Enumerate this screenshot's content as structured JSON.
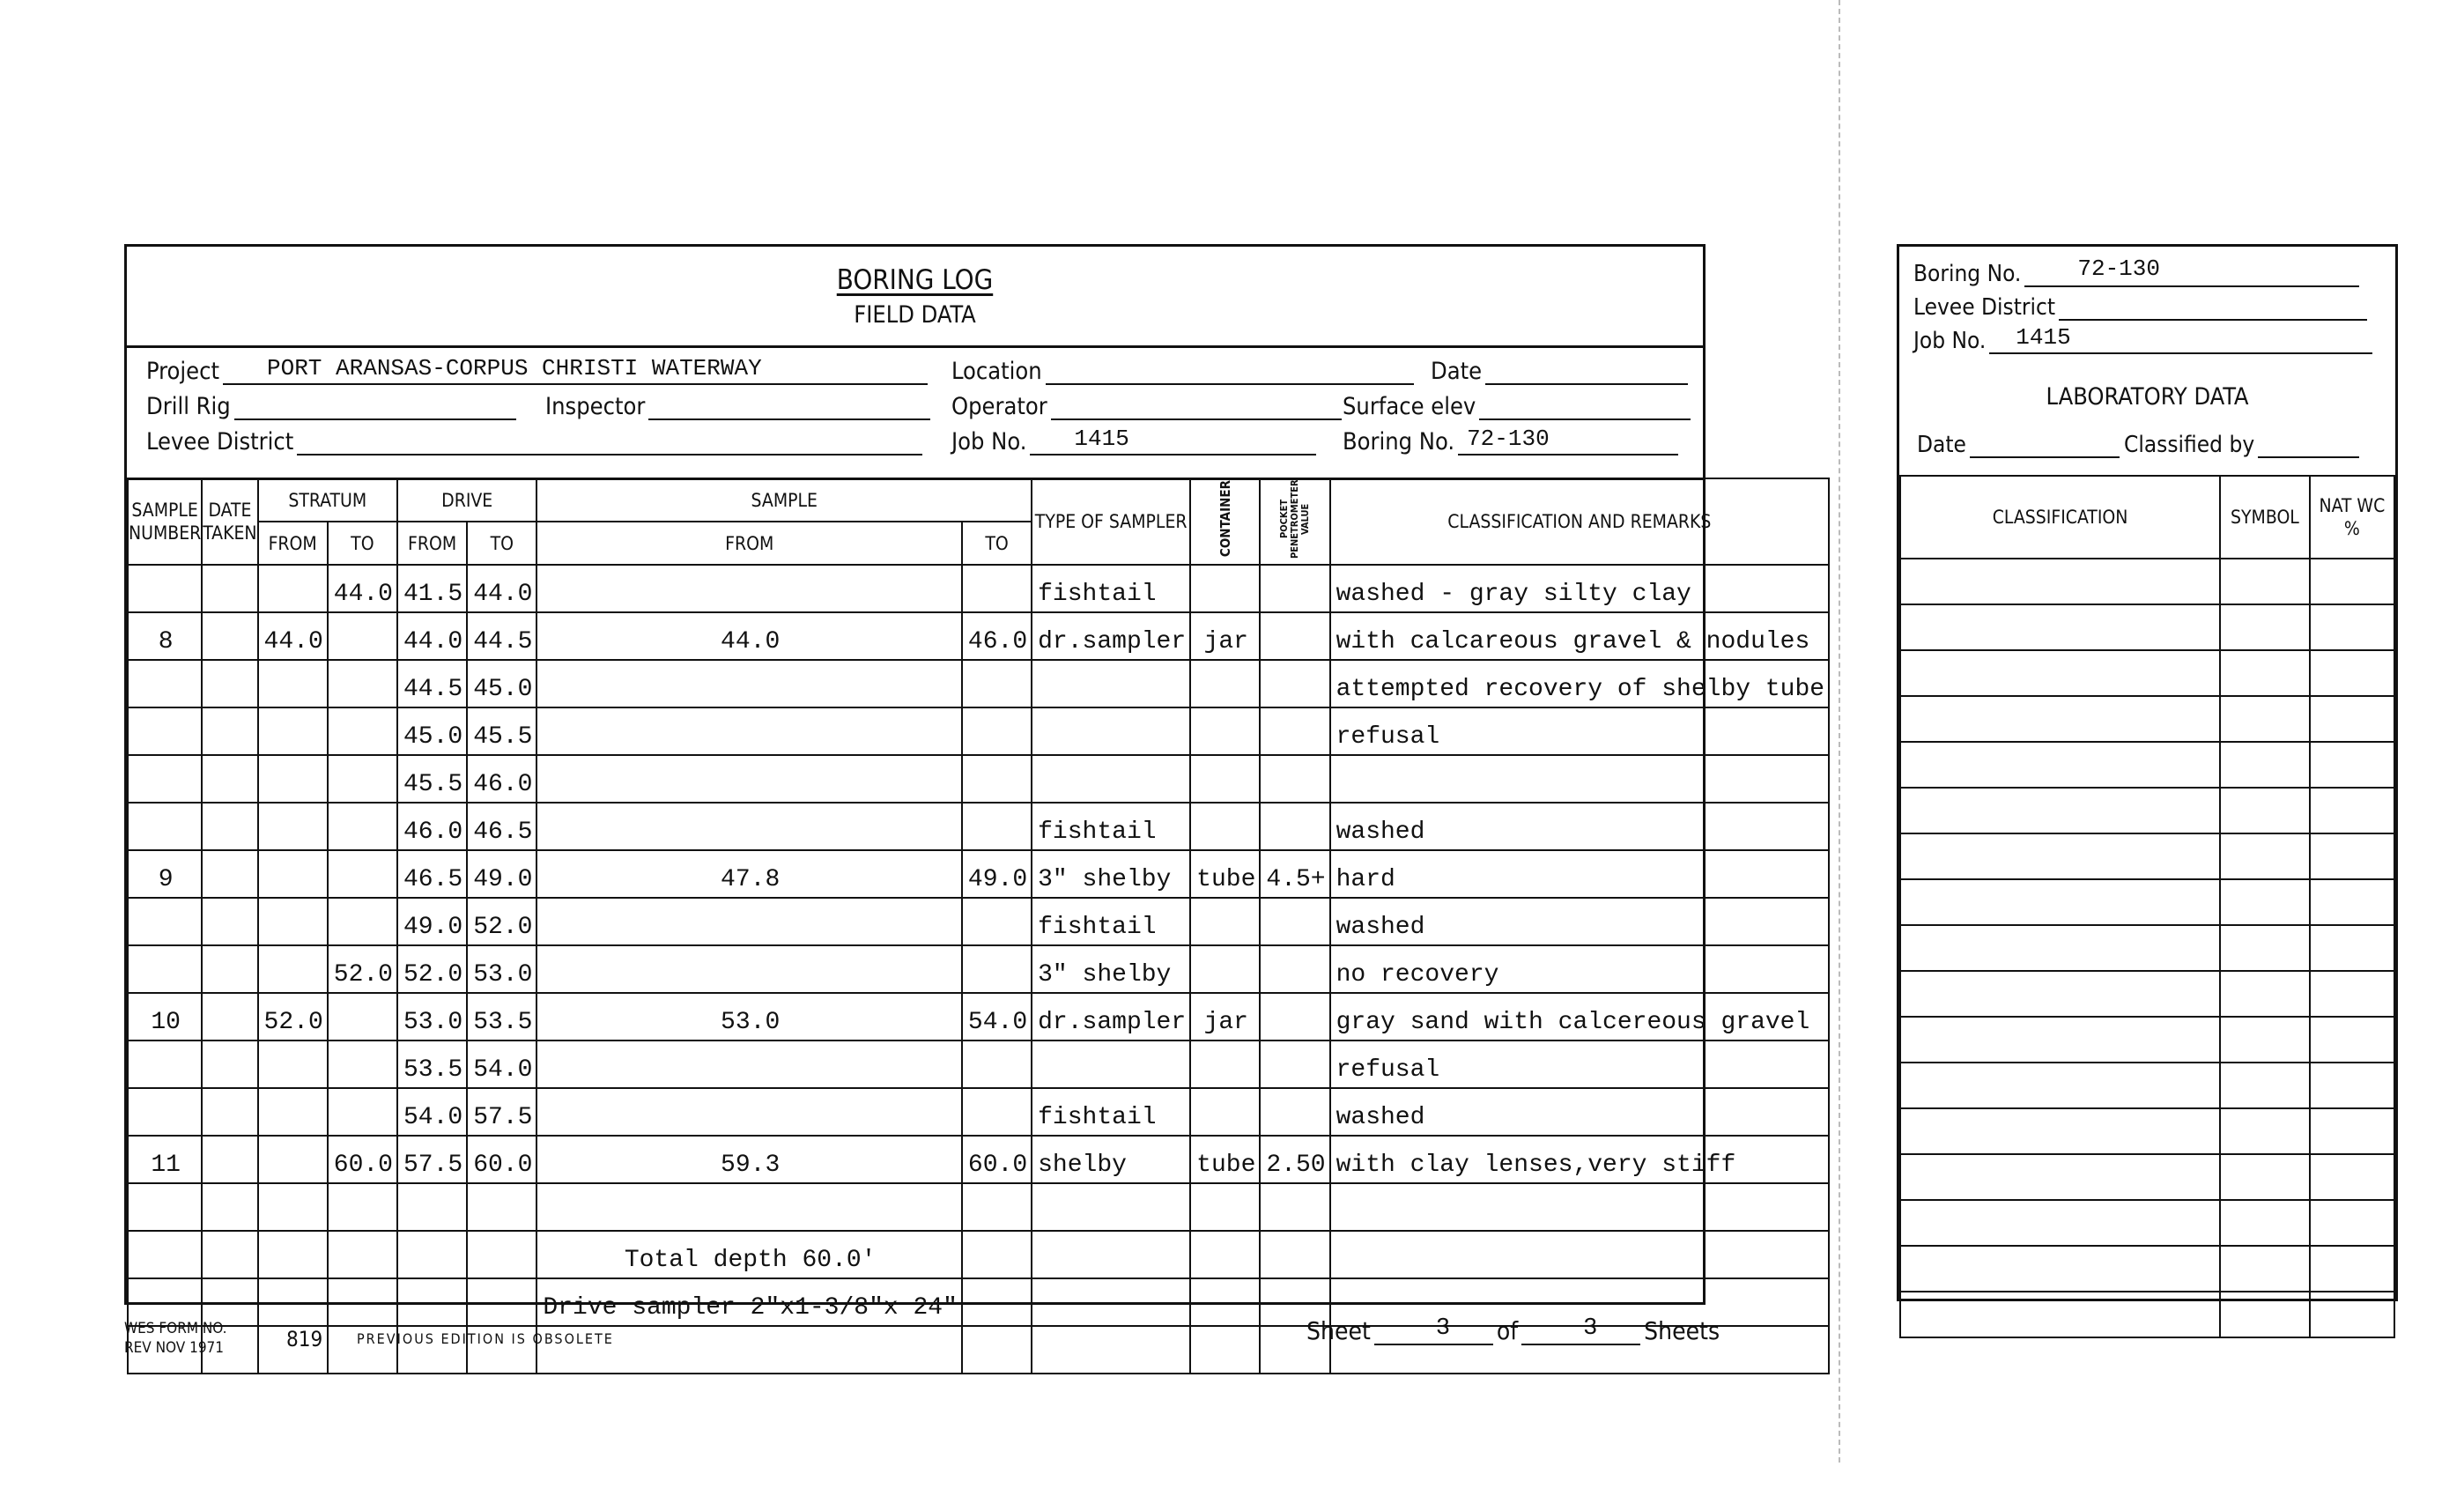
{
  "header": {
    "title": "BORING LOG",
    "subtitle": "FIELD DATA"
  },
  "fields": {
    "project_label": "Project",
    "project_value": "PORT ARANSAS-CORPUS CHRISTI WATERWAY",
    "location_label": "Location",
    "date_label": "Date",
    "drill_rig_label": "Drill Rig",
    "inspector_label": "Inspector",
    "operator_label": "Operator",
    "surface_elev_label": "Surface elev",
    "levee_district_label": "Levee District",
    "job_no_label": "Job No.",
    "job_no_value": "1415",
    "boring_no_label": "Boring No.",
    "boring_no_value": "72-130"
  },
  "table": {
    "headers": {
      "sample_number": "SAMPLE NUMBER",
      "date_taken": "DATE TAKEN",
      "stratum": "STRATUM",
      "drive": "DRIVE",
      "sample": "SAMPLE",
      "from": "FROM",
      "to": "TO",
      "type_of_sampler": "TYPE OF SAMPLER",
      "container": "CONTAINER",
      "pocket_penetrometer": "POCKET PENETROMETER VALUE",
      "classification": "CLASSIFICATION AND REMARKS"
    },
    "rows": [
      [
        "",
        "",
        "",
        "44.0",
        "41.5",
        "44.0",
        "",
        "",
        "fishtail",
        "",
        "",
        "washed - gray silty clay"
      ],
      [
        "8",
        "",
        "44.0",
        "",
        "44.0",
        "44.5",
        "44.0",
        "46.0",
        "dr.sampler",
        "jar",
        "",
        " with calcareous gravel & nodules"
      ],
      [
        "",
        "",
        "",
        "",
        "44.5",
        "45.0",
        "",
        "",
        "",
        "",
        "",
        " attempted recovery of shelby tube"
      ],
      [
        "",
        "",
        "",
        "",
        "45.0",
        "45.5",
        "",
        "",
        "",
        "",
        "",
        " refusal"
      ],
      [
        "",
        "",
        "",
        "",
        "45.5",
        "46.0",
        "",
        "",
        "",
        "",
        "",
        ""
      ],
      [
        "",
        "",
        "",
        "",
        "46.0",
        "46.5",
        "",
        "",
        "fishtail",
        "",
        "",
        " washed"
      ],
      [
        "9",
        "",
        "",
        "",
        "46.5",
        "49.0",
        "47.8",
        "49.0",
        "3\" shelby",
        "tube",
        "4.5+",
        "hard"
      ],
      [
        "",
        "",
        "",
        "",
        "49.0",
        "52.0",
        "",
        "",
        "fishtail",
        "",
        "",
        " washed"
      ],
      [
        "",
        "",
        "",
        "52.0",
        "52.0",
        "53.0",
        "",
        "",
        "3\" shelby",
        "",
        "",
        " no recovery"
      ],
      [
        "10",
        "",
        "52.0",
        "",
        "53.0",
        "53.5",
        "53.0",
        "54.0",
        "dr.sampler",
        "jar",
        "",
        " gray sand with calcereous gravel"
      ],
      [
        "",
        "",
        "",
        "",
        "53.5",
        "54.0",
        "",
        "",
        "",
        "",
        "",
        " refusal"
      ],
      [
        "",
        "",
        "",
        "",
        "54.0",
        "57.5",
        "",
        "",
        "fishtail",
        "",
        "",
        "washed"
      ],
      [
        "11",
        "",
        "",
        "60.0",
        "57.5",
        "60.0",
        "59.3",
        "60.0",
        "shelby",
        "tube",
        "2.50",
        "with clay lenses,very stiff"
      ],
      [
        "",
        "",
        "",
        "",
        "",
        "",
        "",
        "",
        "",
        "",
        "",
        ""
      ],
      [
        "",
        "",
        "",
        "",
        "",
        "",
        "Total depth 60.0'",
        "",
        "",
        "",
        "",
        ""
      ],
      [
        "",
        "",
        "",
        "",
        "",
        "",
        "Drive sampler 2\"x1-3/8\"x 24\"",
        "",
        "",
        "",
        "",
        ""
      ],
      [
        "",
        "",
        "",
        "",
        "",
        "",
        "",
        "",
        "",
        "",
        "",
        ""
      ]
    ]
  },
  "footer": {
    "form_label": "WES FORM NO.",
    "rev": "REV NOV 1971",
    "form_number": "819",
    "obsolete": "PREVIOUS EDITION IS OBSOLETE",
    "sheet_label": "Sheet",
    "sheet_value": "3",
    "of_label": "of",
    "of_value": "3",
    "sheets_label": "Sheets"
  },
  "lab": {
    "boring_no_label": "Boring No.",
    "boring_no_value": "72-130",
    "levee_district_label": "Levee District",
    "job_no_label": "Job No.",
    "job_no_value": "1415",
    "title": "LABORATORY DATA",
    "date_label": "Date",
    "classified_by_label": "Classified by",
    "headers": {
      "classification": "CLASSIFICATION",
      "symbol": "SYMBOL",
      "nat_wc": "NAT WC %"
    }
  }
}
